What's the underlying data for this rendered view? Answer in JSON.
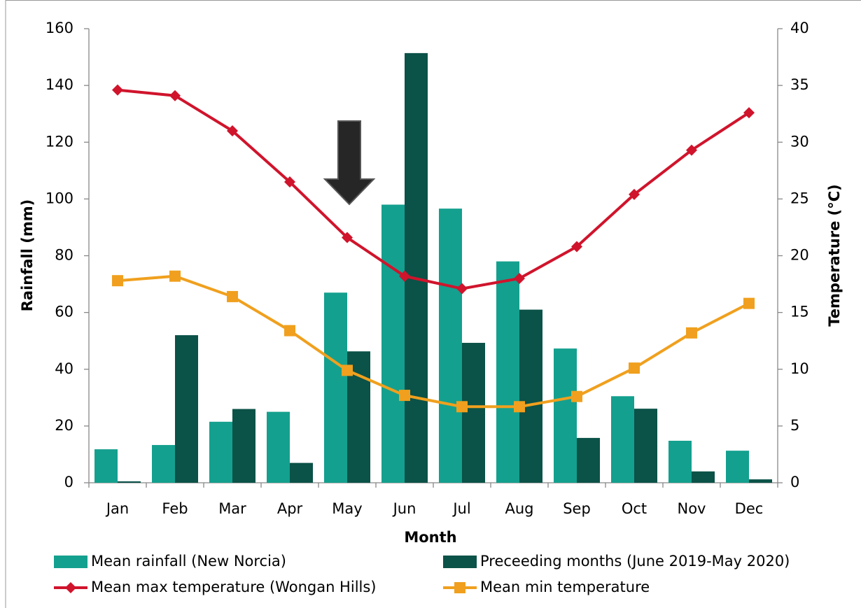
{
  "chart_data": {
    "type": "bar",
    "categories": [
      "Jan",
      "Feb",
      "Mar",
      "Apr",
      "May",
      "Jun",
      "Jul",
      "Aug",
      "Sep",
      "Oct",
      "Nov",
      "Dec"
    ],
    "x_label": "Month",
    "y_label": "Rainfall (mm)",
    "y2_label": "Temperature (°C)",
    "ylim": [
      0,
      160
    ],
    "yticks": [
      0,
      20,
      40,
      60,
      80,
      100,
      120,
      140,
      160
    ],
    "y2lim": [
      0,
      40
    ],
    "y2ticks": [
      0,
      5,
      10,
      15,
      20,
      25,
      30,
      35,
      40
    ],
    "series": [
      {
        "name": "Mean rainfall (New Norcia)",
        "type": "bar",
        "color": "#14a08e",
        "values": [
          11.8,
          13.3,
          21.5,
          25,
          67,
          98,
          96.6,
          78,
          47.3,
          30.5,
          14.8,
          11.3
        ]
      },
      {
        "name": "Preceeding months (June 2019-May 2020)",
        "type": "bar",
        "color": "#0b5248",
        "values": [
          0.5,
          52,
          26,
          7,
          46.3,
          151.4,
          49.3,
          61,
          15.8,
          26.1,
          4,
          1.2
        ]
      },
      {
        "name": "Mean max temperature (Wongan Hills)",
        "type": "line",
        "axis": "y2",
        "color": "#d0142c",
        "marker": "diamond",
        "values": [
          34.6,
          34.1,
          31.0,
          26.5,
          21.6,
          18.2,
          17.1,
          18.0,
          20.8,
          25.4,
          29.3,
          32.6
        ]
      },
      {
        "name": "Mean min temperature",
        "type": "line",
        "axis": "y2",
        "color": "#f0a01e",
        "marker": "square",
        "values": [
          17.8,
          18.2,
          16.4,
          13.4,
          9.9,
          7.7,
          6.7,
          6.7,
          7.6,
          10.1,
          13.2,
          15.8
        ]
      }
    ]
  }
}
